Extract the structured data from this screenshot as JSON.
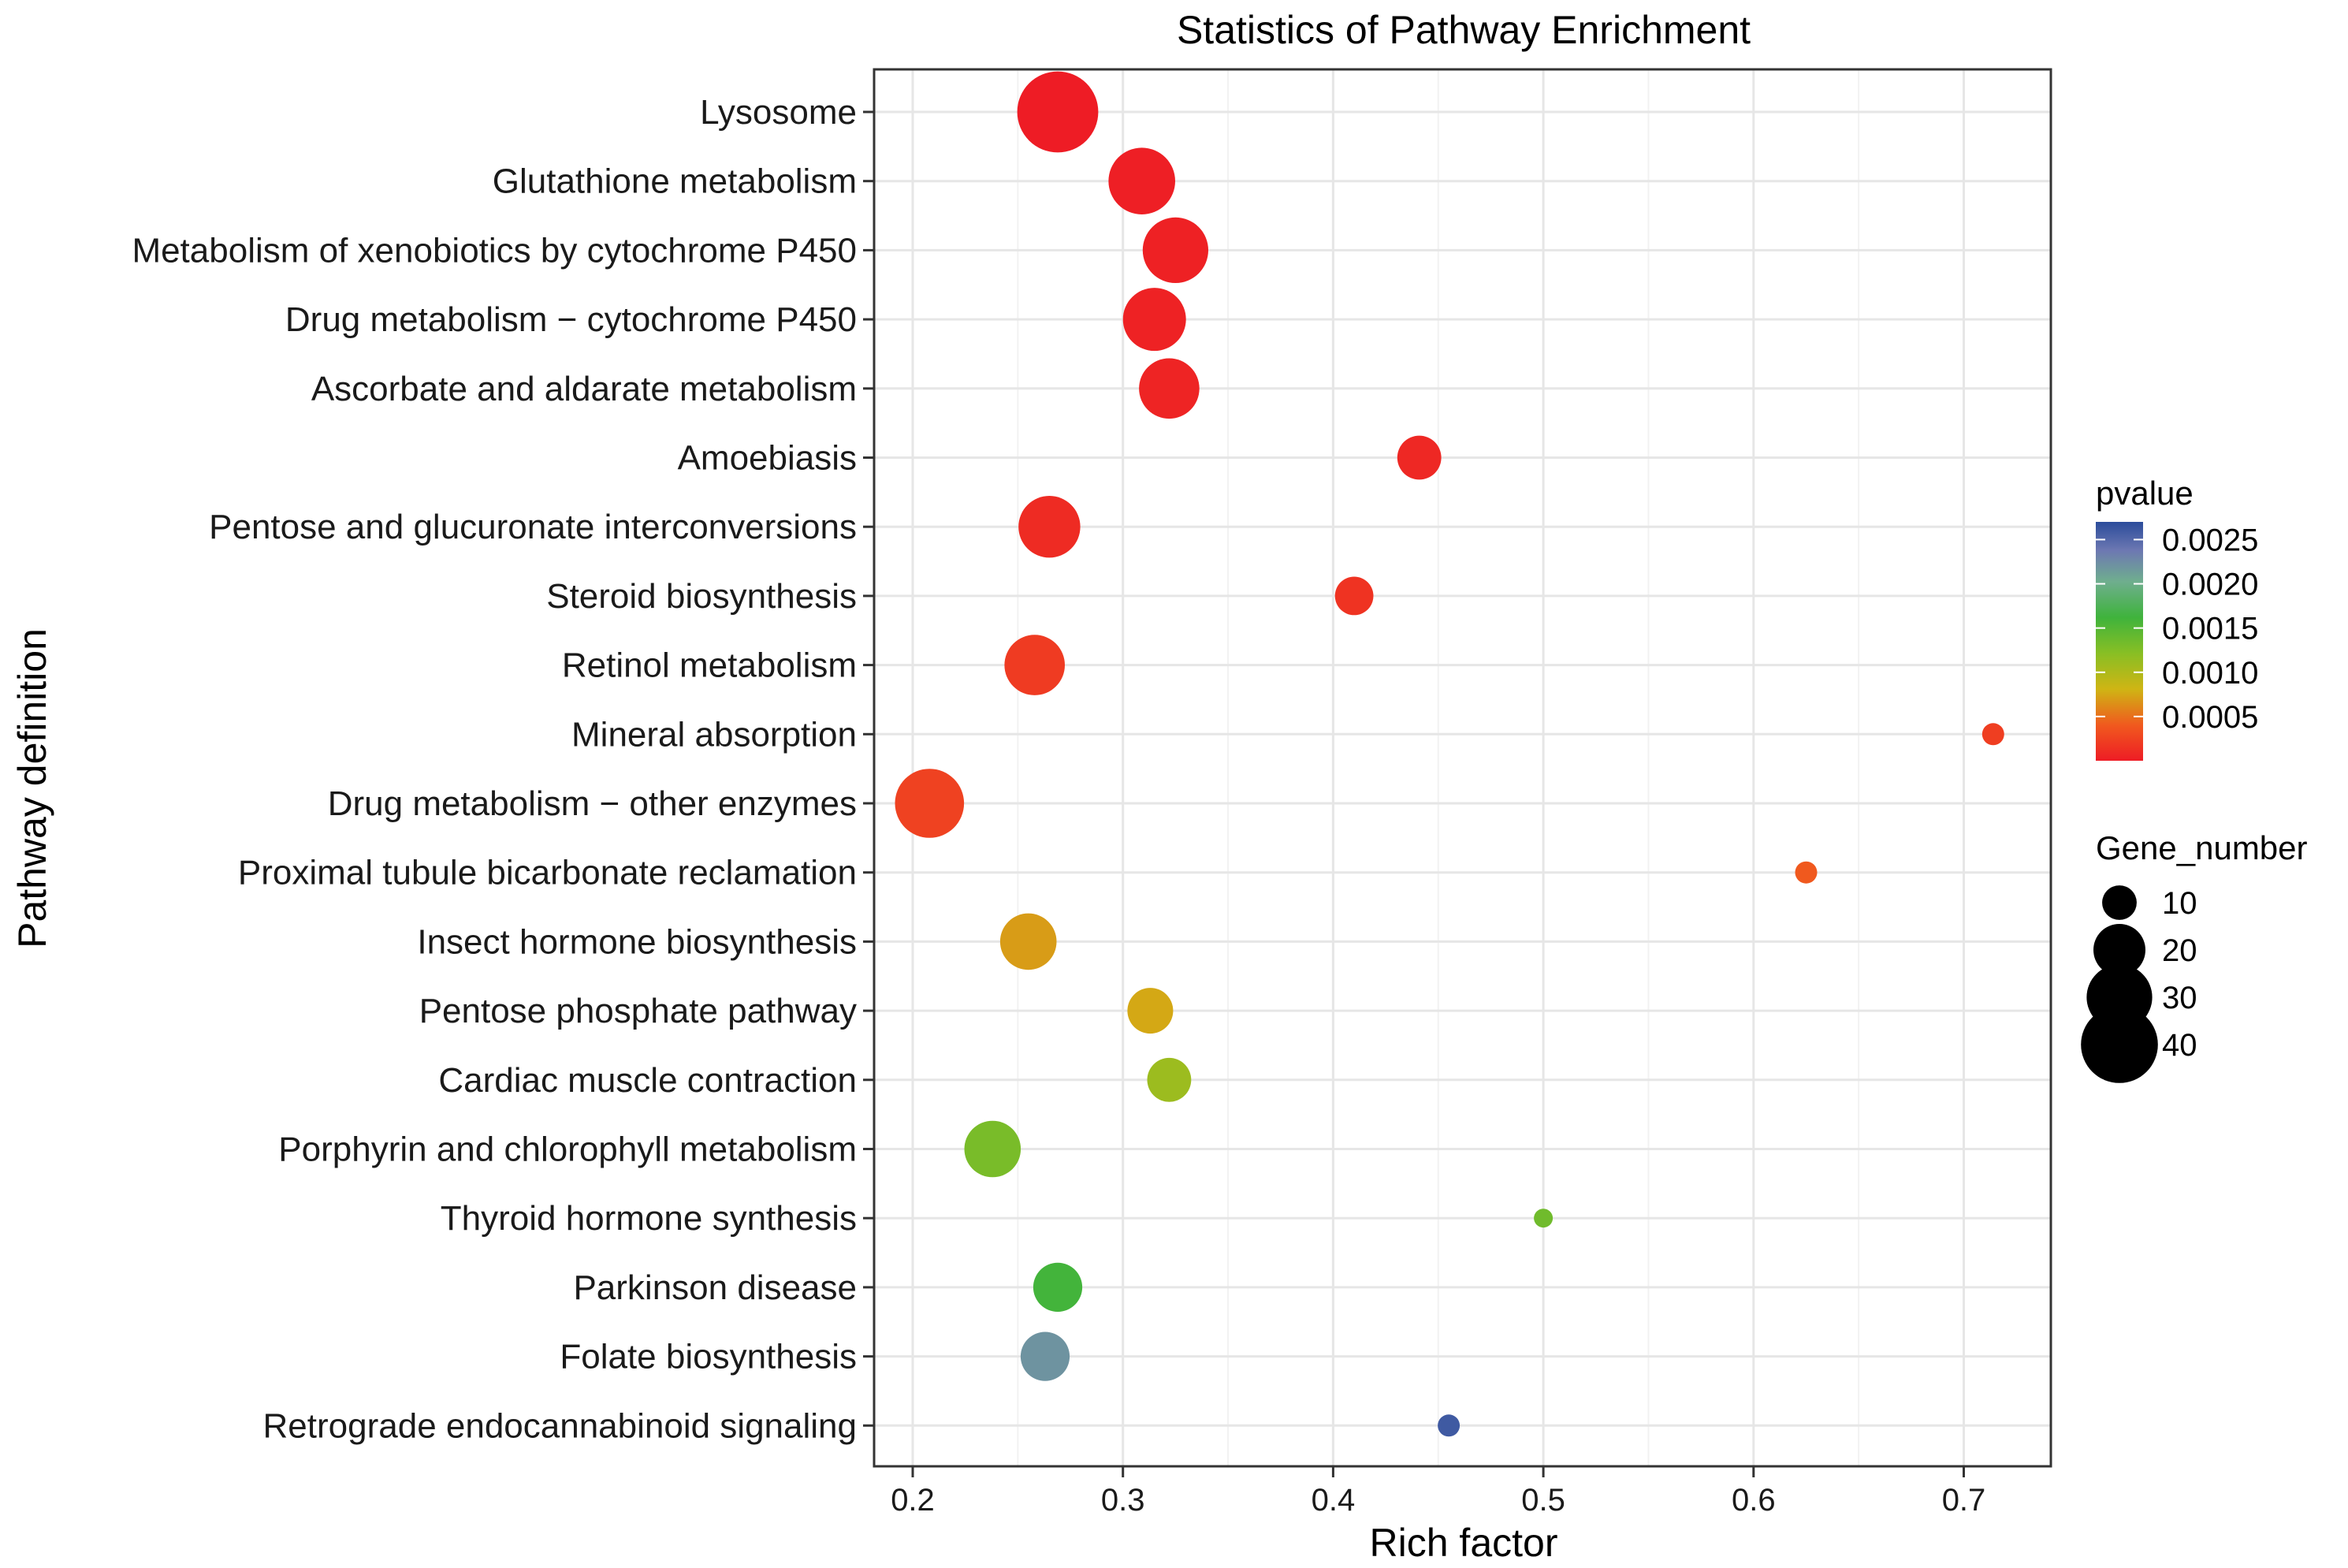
{
  "chart_data": {
    "type": "scatter",
    "title": "Statistics of Pathway Enrichment",
    "xlabel": "Rich factor",
    "ylabel": "Pathway definition",
    "xlim": [
      0.18,
      0.735
    ],
    "xticks": [
      0.2,
      0.3,
      0.4,
      0.5,
      0.6,
      0.7
    ],
    "xtick_labels": [
      "0.2",
      "0.3",
      "0.4",
      "0.5",
      "0.6",
      "0.7"
    ],
    "grid": true,
    "color_legend": {
      "title": "pvalue",
      "range": [
        0,
        0.0027
      ],
      "ticks": [
        0.0025,
        0.002,
        0.0015,
        0.001,
        0.0005
      ],
      "tick_labels": [
        "0.0025",
        "0.0020",
        "0.0015",
        "0.0010",
        "0.0005"
      ],
      "low_color": "#ee1c25",
      "high_color": "#2b4c9b"
    },
    "size_legend": {
      "title": "Gene_number",
      "values": [
        10,
        20,
        30,
        40
      ],
      "labels": [
        "10",
        "20",
        "30",
        "40"
      ]
    },
    "legend_position": "right",
    "points": [
      {
        "pathway": "Lysosome",
        "rich_factor": 0.269,
        "pvalue": 0.0,
        "gene_number": 44
      },
      {
        "pathway": "Glutathione metabolism",
        "rich_factor": 0.309,
        "pvalue": 2e-05,
        "gene_number": 31
      },
      {
        "pathway": "Metabolism of xenobiotics by cytochrome P450",
        "rich_factor": 0.325,
        "pvalue": 3e-05,
        "gene_number": 30
      },
      {
        "pathway": "Drug metabolism − cytochrome P450",
        "rich_factor": 0.315,
        "pvalue": 4e-05,
        "gene_number": 28
      },
      {
        "pathway": "Ascorbate and aldarate metabolism",
        "rich_factor": 0.322,
        "pvalue": 5e-05,
        "gene_number": 26
      },
      {
        "pathway": "Amoebiasis",
        "rich_factor": 0.441,
        "pvalue": 8e-05,
        "gene_number": 15
      },
      {
        "pathway": "Pentose and glucuronate interconversions",
        "rich_factor": 0.265,
        "pvalue": 0.0001,
        "gene_number": 27
      },
      {
        "pathway": "Steroid biosynthesis",
        "rich_factor": 0.41,
        "pvalue": 0.00015,
        "gene_number": 12
      },
      {
        "pathway": "Retinol metabolism",
        "rich_factor": 0.258,
        "pvalue": 0.0002,
        "gene_number": 26
      },
      {
        "pathway": "Mineral absorption",
        "rich_factor": 0.714,
        "pvalue": 0.00022,
        "gene_number": 5
      },
      {
        "pathway": "Drug metabolism − other enzymes",
        "rich_factor": 0.208,
        "pvalue": 0.00025,
        "gene_number": 33
      },
      {
        "pathway": "Proximal tubule bicarbonate reclamation",
        "rich_factor": 0.625,
        "pvalue": 0.0004,
        "gene_number": 5
      },
      {
        "pathway": "Insect hormone biosynthesis",
        "rich_factor": 0.255,
        "pvalue": 0.0007,
        "gene_number": 23
      },
      {
        "pathway": "Pentose phosphate pathway",
        "rich_factor": 0.313,
        "pvalue": 0.00075,
        "gene_number": 16
      },
      {
        "pathway": "Cardiac muscle contraction",
        "rich_factor": 0.322,
        "pvalue": 0.0011,
        "gene_number": 15
      },
      {
        "pathway": "Porphyrin and chlorophyll metabolism",
        "rich_factor": 0.238,
        "pvalue": 0.0013,
        "gene_number": 23
      },
      {
        "pathway": "Thyroid hormone synthesis",
        "rich_factor": 0.5,
        "pvalue": 0.00135,
        "gene_number": 4
      },
      {
        "pathway": "Parkinson disease",
        "rich_factor": 0.269,
        "pvalue": 0.0016,
        "gene_number": 18
      },
      {
        "pathway": "Folate biosynthesis",
        "rich_factor": 0.263,
        "pvalue": 0.0022,
        "gene_number": 18
      },
      {
        "pathway": "Retrograde endocannabinoid signaling",
        "rich_factor": 0.455,
        "pvalue": 0.0026,
        "gene_number": 5
      }
    ]
  }
}
